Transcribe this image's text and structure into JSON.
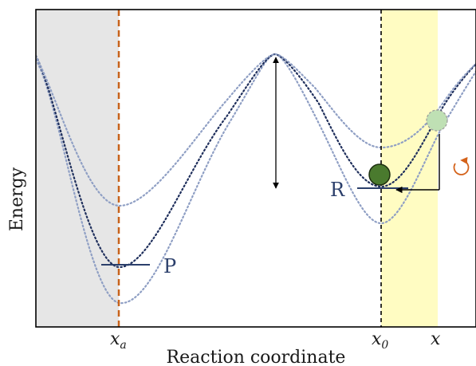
{
  "chart_data": {
    "type": "diagram",
    "xlabel": "Reaction coordinate",
    "ylabel": "Energy",
    "x_ticks": [
      {
        "main": "x",
        "sub": "a"
      },
      {
        "main": "x",
        "sub": "0"
      },
      {
        "main": "x",
        "sub": ""
      }
    ],
    "state_labels": {
      "product": "P",
      "reactant": "R"
    },
    "curves": [
      "outer",
      "middle",
      "inner"
    ],
    "colors": {
      "shaded_region": "#e6e6e6",
      "highlight_region": "#fffcc2",
      "xa_line": "#c8621a",
      "x0_line": "#000000",
      "curve_dark": "#1f2f5c",
      "curve_light": "#8f9fc4",
      "level_line": "#2b3f6b",
      "particle": "#4a7a2e",
      "ghost_particle": "#bfe0b4",
      "rotation_arrow": "#d4621a"
    }
  }
}
